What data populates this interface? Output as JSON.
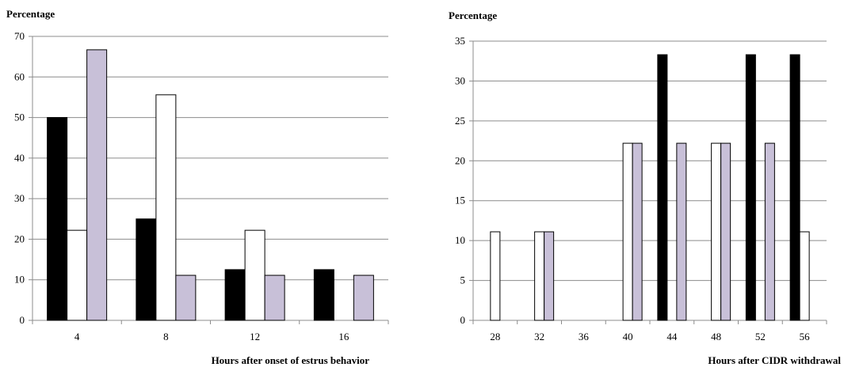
{
  "chart_data": [
    {
      "type": "bar",
      "ylabel": "Percentage",
      "xlabel": "Hours after onset of estrus behavior",
      "categories": [
        "4",
        "8",
        "12",
        "16"
      ],
      "ylim": [
        0,
        70
      ],
      "yticks": [
        0,
        10,
        20,
        30,
        40,
        50,
        60,
        70
      ],
      "grid": true,
      "series": [
        {
          "color": "#000000",
          "values": [
            50,
            25,
            12.5,
            12.5
          ]
        },
        {
          "color": "#ffffff",
          "values": [
            22.2,
            55.6,
            22.2,
            0
          ]
        },
        {
          "color": "#c8c0d8",
          "values": [
            66.7,
            11.1,
            11.1,
            11.1
          ]
        }
      ]
    },
    {
      "type": "bar",
      "ylabel": "Percentage",
      "xlabel": "Hours after CIDR withdrawal",
      "categories": [
        "28",
        "32",
        "36",
        "40",
        "44",
        "48",
        "52",
        "56"
      ],
      "ylim": [
        0,
        35
      ],
      "yticks": [
        0,
        5,
        10,
        15,
        20,
        25,
        30,
        35
      ],
      "grid": true,
      "series": [
        {
          "color": "#000000",
          "values": [
            0,
            0,
            0,
            0,
            33.3,
            0,
            33.3,
            33.3
          ]
        },
        {
          "color": "#ffffff",
          "values": [
            11.1,
            11.1,
            0,
            22.2,
            0,
            22.2,
            0,
            11.1
          ]
        },
        {
          "color": "#c8c0d8",
          "values": [
            0,
            11.1,
            0,
            22.2,
            22.2,
            22.2,
            22.2,
            0
          ]
        }
      ]
    }
  ]
}
